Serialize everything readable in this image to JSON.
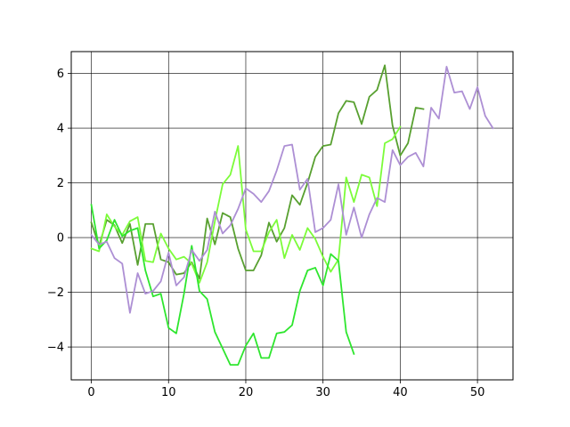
{
  "chart_data": {
    "type": "line",
    "title": "",
    "xlabel": "",
    "ylabel": "",
    "xlim": [
      -2.6,
      54.6
    ],
    "ylim": [
      -5.2,
      6.8
    ],
    "xticks": [
      0,
      10,
      20,
      30,
      40,
      50
    ],
    "yticks": [
      -4,
      -2,
      0,
      2,
      4,
      6
    ],
    "grid": true,
    "legend": "none",
    "series": [
      {
        "color": "#58a030",
        "x": [
          0,
          1,
          2,
          3,
          4,
          5,
          6,
          7,
          8,
          9,
          10,
          11,
          12,
          13,
          14,
          15,
          16,
          17,
          18,
          19,
          20,
          21,
          22,
          23,
          24,
          25,
          26,
          27,
          28,
          29,
          30,
          31,
          32,
          33,
          34,
          35,
          36,
          37,
          38,
          39,
          40,
          41,
          42,
          43
        ],
        "values": [
          0.55,
          -0.3,
          0.65,
          0.45,
          -0.2,
          0.5,
          -1.0,
          0.5,
          0.5,
          -0.8,
          -0.9,
          -1.35,
          -1.3,
          -0.9,
          -1.5,
          0.7,
          -0.25,
          0.9,
          0.75,
          -0.4,
          -1.2,
          -1.2,
          -0.65,
          0.55,
          -0.15,
          0.35,
          1.55,
          1.2,
          2.0,
          2.95,
          3.35,
          3.4,
          4.55,
          5.0,
          4.95,
          4.15,
          5.15,
          5.4,
          6.3,
          4.1,
          3.0,
          3.45,
          4.75,
          4.7
        ]
      },
      {
        "color": "#7cfc3a",
        "x": [
          0,
          1,
          2,
          3,
          4,
          5,
          6,
          7,
          8,
          9,
          10,
          11,
          12,
          13,
          14,
          15,
          16,
          17,
          18,
          19,
          20,
          21,
          22,
          23,
          24,
          25,
          26,
          27,
          28,
          29,
          30,
          31,
          32,
          33,
          34,
          35,
          36,
          37,
          38,
          39,
          40
        ],
        "values": [
          -0.4,
          -0.5,
          0.85,
          0.4,
          0.1,
          0.6,
          0.75,
          -0.85,
          -0.9,
          0.15,
          -0.4,
          -0.8,
          -0.7,
          -0.95,
          -1.65,
          -0.9,
          0.6,
          1.95,
          2.3,
          3.35,
          0.3,
          -0.5,
          -0.5,
          0.2,
          0.65,
          -0.75,
          0.1,
          -0.45,
          0.35,
          -0.05,
          -0.7,
          -1.25,
          -0.8,
          2.2,
          1.3,
          2.3,
          2.2,
          1.15,
          3.45,
          3.6,
          4.05
        ]
      },
      {
        "color": "#2ee62e",
        "x": [
          0,
          1,
          2,
          3,
          4,
          5,
          6,
          7,
          8,
          9,
          10,
          11,
          12,
          13,
          14,
          15,
          16,
          17,
          18,
          19,
          20,
          21,
          22,
          23,
          24,
          25,
          26,
          27,
          28,
          29,
          30,
          31,
          32,
          33,
          34
        ],
        "values": [
          1.2,
          -0.4,
          -0.1,
          0.65,
          0.05,
          0.25,
          0.35,
          -1.2,
          -2.15,
          -2.05,
          -3.3,
          -3.5,
          -2.05,
          -0.3,
          -1.95,
          -2.25,
          -3.45,
          -4.05,
          -4.65,
          -4.65,
          -3.95,
          -3.5,
          -4.4,
          -4.4,
          -3.5,
          -3.45,
          -3.2,
          -1.95,
          -1.2,
          -1.1,
          -1.75,
          -0.6,
          -0.85,
          -3.45,
          -4.25
        ]
      },
      {
        "color": "#ad8fd4",
        "x": [
          0,
          1,
          2,
          3,
          4,
          5,
          6,
          7,
          8,
          9,
          10,
          11,
          12,
          13,
          14,
          15,
          16,
          17,
          18,
          19,
          20,
          21,
          22,
          23,
          24,
          25,
          26,
          27,
          28,
          29,
          30,
          31,
          32,
          33,
          34,
          35,
          36,
          37,
          38,
          39,
          40,
          41,
          42,
          43,
          44,
          45,
          46,
          47,
          48,
          49,
          50,
          51,
          52
        ],
        "values": [
          0.1,
          -0.25,
          -0.15,
          -0.75,
          -0.95,
          -2.75,
          -1.3,
          -2.05,
          -1.95,
          -1.6,
          -0.55,
          -1.75,
          -1.45,
          -0.45,
          -0.85,
          -0.45,
          0.95,
          0.15,
          0.45,
          1.05,
          1.8,
          1.6,
          1.3,
          1.7,
          2.45,
          3.35,
          3.4,
          1.75,
          2.15,
          0.2,
          0.35,
          0.65,
          1.95,
          0.1,
          1.1,
          0.0,
          0.85,
          1.45,
          1.3,
          3.2,
          2.65,
          2.95,
          3.1,
          2.6,
          4.75,
          4.35,
          6.25,
          5.3,
          5.35,
          4.7,
          5.5,
          4.45,
          4.0
        ]
      }
    ]
  }
}
